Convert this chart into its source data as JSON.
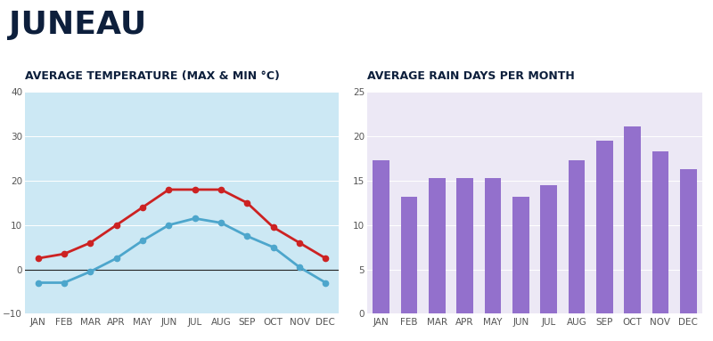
{
  "title": "JUNEAU",
  "months": [
    "JAN",
    "FEB",
    "MAR",
    "APR",
    "MAY",
    "JUN",
    "JUL",
    "AUG",
    "SEP",
    "OCT",
    "NOV",
    "DEC"
  ],
  "temp_max": [
    2.5,
    3.5,
    6,
    10,
    14,
    18,
    18,
    18,
    15,
    9.5,
    6,
    2.5
  ],
  "temp_min": [
    -3,
    -3,
    -0.5,
    2.5,
    6.5,
    10,
    11.5,
    10.5,
    7.5,
    5,
    0.5,
    -3
  ],
  "temp_title": "AVERAGE TEMPERATURE (MAX & MIN °C)",
  "temp_ylim": [
    -10,
    40
  ],
  "temp_yticks": [
    -10,
    0,
    10,
    20,
    30,
    40
  ],
  "temp_bg": "#cce8f4",
  "temp_max_color": "#cc2222",
  "temp_min_color": "#4da6cc",
  "rain_days": [
    17.3,
    13.2,
    15.3,
    15.3,
    15.3,
    13.2,
    14.5,
    17.3,
    19.5,
    21.1,
    18.3,
    16.3
  ],
  "rain_title": "AVERAGE RAIN DAYS PER MONTH",
  "rain_ylim": [
    0,
    25
  ],
  "rain_yticks": [
    0,
    5,
    10,
    15,
    20,
    25
  ],
  "rain_bg": "#ece8f5",
  "rain_bar_color": "#9370cc",
  "bg_color": "#ffffff",
  "title_color": "#0d1f3c",
  "tick_color": "#555555",
  "title_fontsize": 26,
  "subtitle_fontsize": 9,
  "tick_fontsize": 7.5
}
